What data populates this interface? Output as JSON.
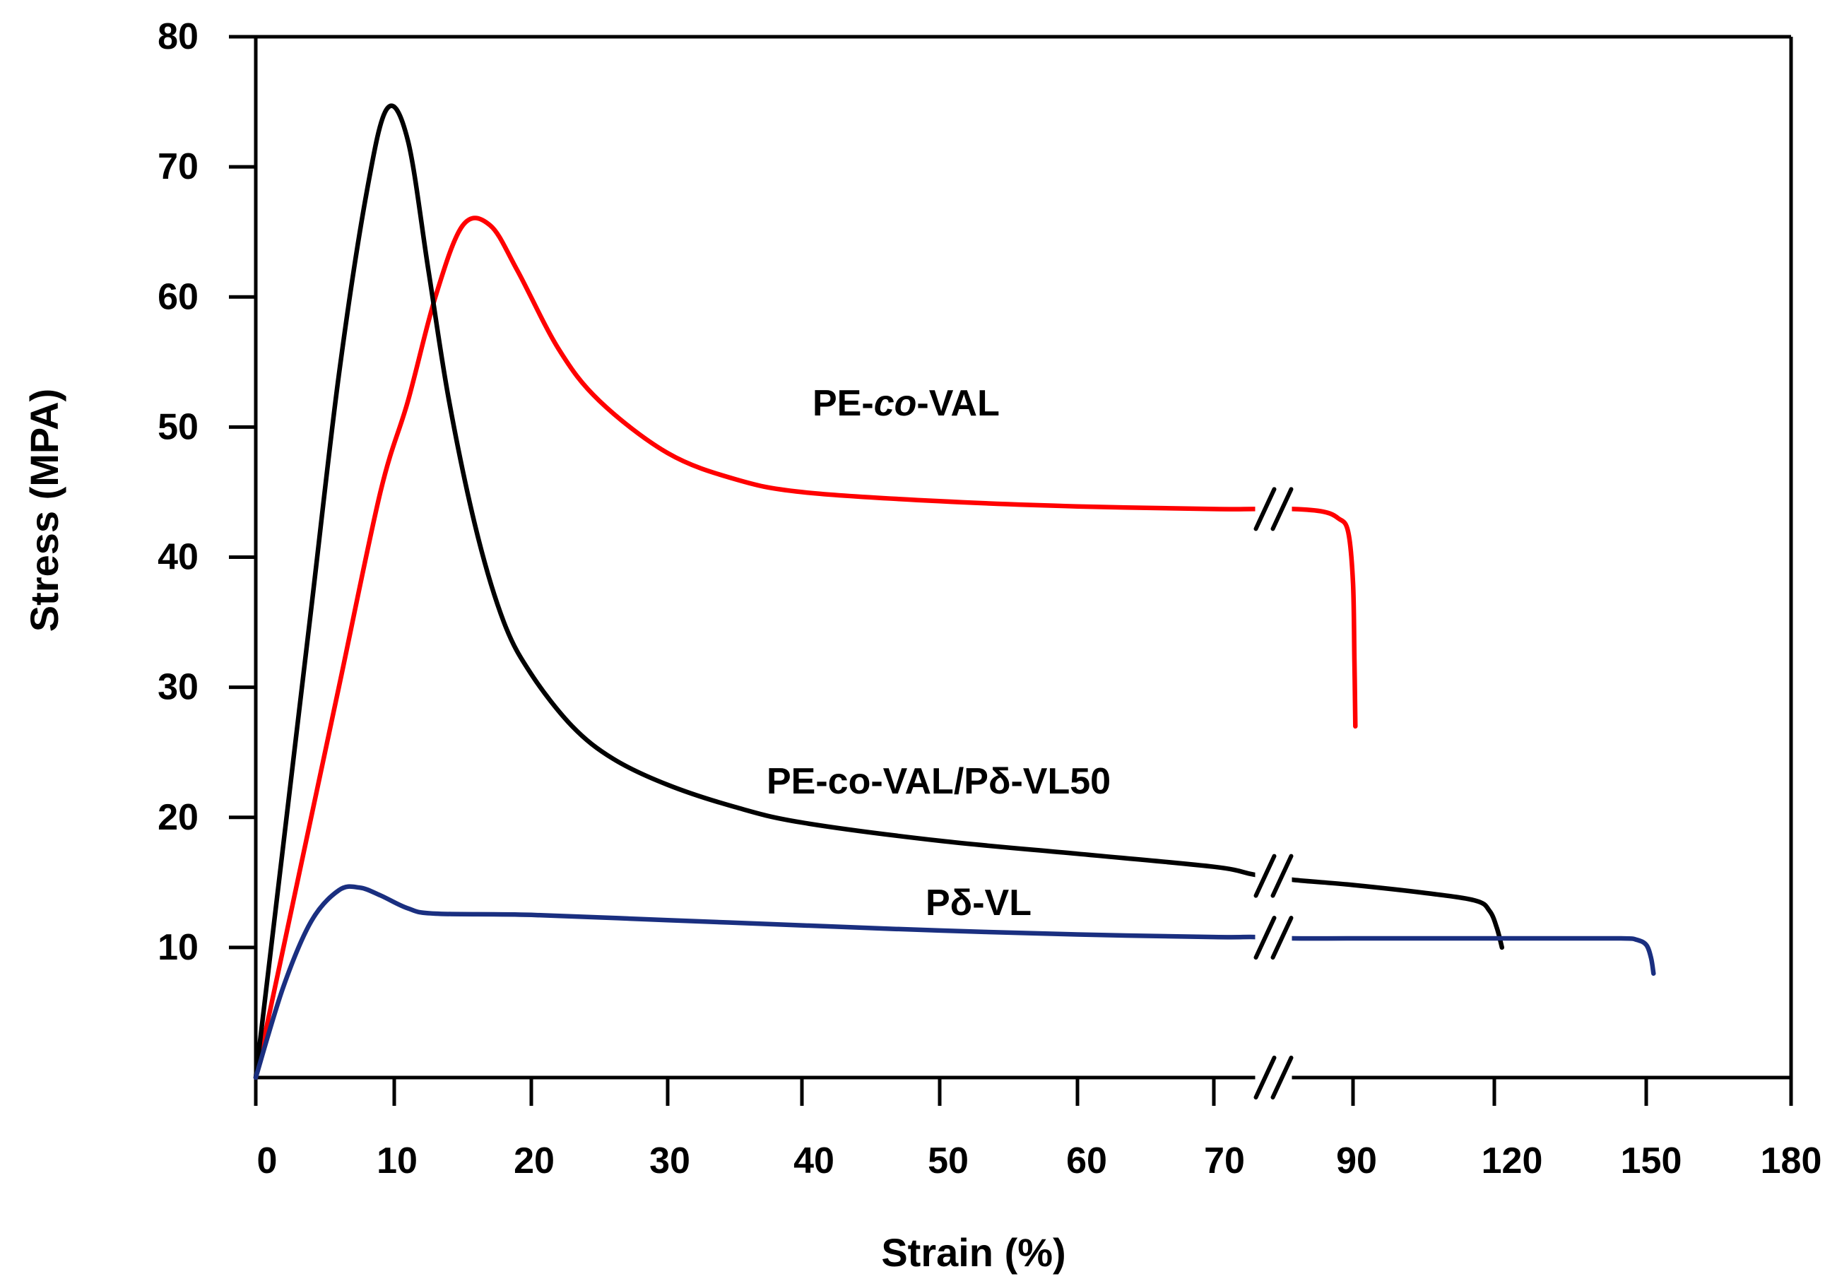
{
  "chart_data": {
    "type": "line",
    "title": "",
    "xlabel": "Strain (%)",
    "ylabel": "Stress (MPA)",
    "x_tick_labels": [
      "0",
      "10",
      "20",
      "30",
      "40",
      "50",
      "60",
      "70",
      "90",
      "120",
      "150",
      "180"
    ],
    "y_tick_labels": [
      "10",
      "20",
      "30",
      "40",
      "50",
      "60",
      "70",
      "80"
    ],
    "y_ticks": [
      10,
      20,
      30,
      40,
      50,
      60,
      70,
      80
    ],
    "ylim": [
      0,
      80
    ],
    "axis_break": {
      "between": [
        "70",
        "90"
      ],
      "symbol": "//"
    },
    "grid": false,
    "series": [
      {
        "name": "PE-co-VAL",
        "label_parts": [
          {
            "text": "PE-",
            "italic": false
          },
          {
            "text": "co",
            "italic": true
          },
          {
            "text": "-VAL",
            "italic": false
          }
        ],
        "color": "#ff0000",
        "points": [
          [
            0,
            0
          ],
          [
            3,
            15
          ],
          [
            6,
            30
          ],
          [
            9,
            45
          ],
          [
            11,
            52
          ],
          [
            13,
            60
          ],
          [
            15,
            65.5
          ],
          [
            17,
            65.5
          ],
          [
            19,
            62
          ],
          [
            22,
            56
          ],
          [
            25,
            52
          ],
          [
            30,
            48
          ],
          [
            35,
            46
          ],
          [
            40,
            45
          ],
          [
            50,
            44.3
          ],
          [
            60,
            43.9
          ],
          [
            70,
            43.7
          ],
          [
            73,
            43.7
          ],
          [
            78,
            43.7
          ],
          [
            84,
            43.5
          ],
          [
            87,
            43
          ],
          [
            89,
            42
          ],
          [
            90,
            38
          ],
          [
            90.3,
            32
          ],
          [
            90.5,
            27
          ]
        ]
      },
      {
        "name": "PE-co-VAL/Pδ-VL50",
        "label_parts": [
          {
            "text": "PE-co-VAL/Pδ-VL50",
            "italic": false
          }
        ],
        "color": "#000000",
        "points": [
          [
            0,
            0
          ],
          [
            2,
            18
          ],
          [
            4,
            36
          ],
          [
            6,
            54
          ],
          [
            8,
            68
          ],
          [
            9.5,
            74.5
          ],
          [
            11,
            72
          ],
          [
            12.5,
            62
          ],
          [
            14,
            52
          ],
          [
            16,
            42
          ],
          [
            18,
            35
          ],
          [
            20,
            31
          ],
          [
            23,
            27
          ],
          [
            26,
            24.5
          ],
          [
            30,
            22.5
          ],
          [
            35,
            20.8
          ],
          [
            40,
            19.6
          ],
          [
            50,
            18.2
          ],
          [
            60,
            17.2
          ],
          [
            70,
            16.2
          ],
          [
            73,
            15.6
          ],
          [
            78,
            15.2
          ],
          [
            90,
            14.8
          ],
          [
            105,
            14.2
          ],
          [
            116,
            13.6
          ],
          [
            119,
            12.8
          ],
          [
            120.5,
            11.5
          ],
          [
            121.5,
            10
          ]
        ]
      },
      {
        "name": "Pδ-VL",
        "label_parts": [
          {
            "text": "Pδ-VL",
            "italic": false
          }
        ],
        "color": "#1a2f80",
        "points": [
          [
            0,
            0
          ],
          [
            2,
            7
          ],
          [
            4,
            12
          ],
          [
            6,
            14.4
          ],
          [
            7.5,
            14.6
          ],
          [
            9,
            14
          ],
          [
            11,
            13
          ],
          [
            13,
            12.6
          ],
          [
            20,
            12.5
          ],
          [
            30,
            12.1
          ],
          [
            40,
            11.7
          ],
          [
            50,
            11.3
          ],
          [
            60,
            11
          ],
          [
            70,
            10.8
          ],
          [
            73,
            10.8
          ],
          [
            78,
            10.7
          ],
          [
            90,
            10.7
          ],
          [
            110,
            10.7
          ],
          [
            130,
            10.7
          ],
          [
            145,
            10.7
          ],
          [
            148,
            10.6
          ],
          [
            150,
            10.2
          ],
          [
            151,
            9.2
          ],
          [
            151.5,
            8
          ]
        ]
      }
    ]
  }
}
